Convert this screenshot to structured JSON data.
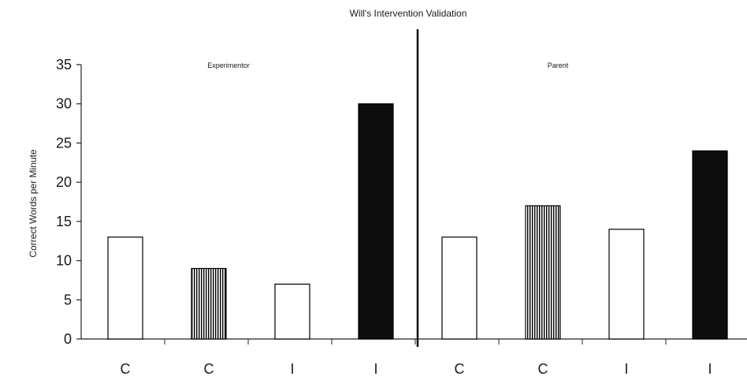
{
  "chart_data": {
    "type": "bar",
    "title": "Will's Intervention Validation",
    "ylabel": "Correct Words per Minute",
    "xlabel": "",
    "ylim": [
      0,
      35
    ],
    "yticks": [
      0,
      5,
      10,
      15,
      20,
      25,
      30,
      35
    ],
    "grid": false,
    "legend": "none",
    "panels": [
      {
        "label": "Experimentor",
        "categories": [
          "C",
          "C",
          "I",
          "I"
        ],
        "values": [
          13,
          9,
          7,
          30
        ],
        "fills": [
          "open",
          "striped",
          "open",
          "solid"
        ]
      },
      {
        "label": "Parent",
        "categories": [
          "C",
          "C",
          "I",
          "I"
        ],
        "values": [
          13,
          17,
          14,
          24
        ],
        "fills": [
          "open",
          "striped",
          "open",
          "solid"
        ]
      }
    ]
  },
  "colors": {
    "bar_stroke": "#000000",
    "solid_fill": "#0d0d0d",
    "open_fill": "#ffffff",
    "axis": "#222222"
  }
}
